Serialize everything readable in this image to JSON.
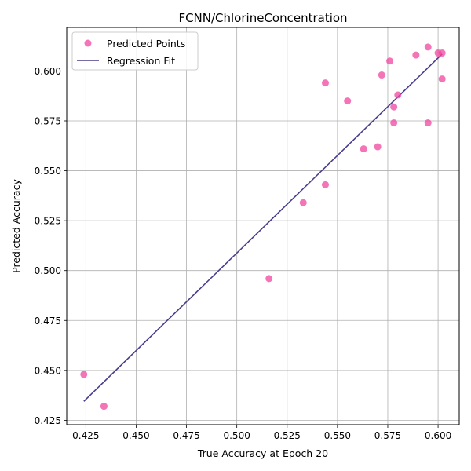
{
  "chart_data": {
    "type": "scatter",
    "title": "FCNN/ChlorineConcentration",
    "xlabel": "True Accuracy at Epoch 20",
    "ylabel": "Predicted Accuracy",
    "xlim": [
      0.4155,
      0.6105
    ],
    "ylim": [
      0.4228,
      0.6218
    ],
    "xticks": [
      "0.425",
      "0.450",
      "0.475",
      "0.500",
      "0.525",
      "0.550",
      "0.575",
      "0.600"
    ],
    "yticks": [
      "0.425",
      "0.450",
      "0.475",
      "0.500",
      "0.525",
      "0.550",
      "0.575",
      "0.600"
    ],
    "grid": true,
    "legend_position": "top-left",
    "series": [
      {
        "name": "Predicted Points",
        "kind": "scatter",
        "color": "#f0479f",
        "points": [
          {
            "x": 0.424,
            "y": 0.448
          },
          {
            "x": 0.434,
            "y": 0.432
          },
          {
            "x": 0.516,
            "y": 0.496
          },
          {
            "x": 0.533,
            "y": 0.534
          },
          {
            "x": 0.544,
            "y": 0.543
          },
          {
            "x": 0.544,
            "y": 0.594
          },
          {
            "x": 0.555,
            "y": 0.585
          },
          {
            "x": 0.563,
            "y": 0.561
          },
          {
            "x": 0.57,
            "y": 0.562
          },
          {
            "x": 0.572,
            "y": 0.598
          },
          {
            "x": 0.576,
            "y": 0.605
          },
          {
            "x": 0.578,
            "y": 0.574
          },
          {
            "x": 0.578,
            "y": 0.582
          },
          {
            "x": 0.58,
            "y": 0.588
          },
          {
            "x": 0.589,
            "y": 0.608
          },
          {
            "x": 0.595,
            "y": 0.612
          },
          {
            "x": 0.595,
            "y": 0.574
          },
          {
            "x": 0.6,
            "y": 0.609
          },
          {
            "x": 0.602,
            "y": 0.609
          },
          {
            "x": 0.602,
            "y": 0.596
          }
        ]
      },
      {
        "name": "Regression Fit",
        "kind": "line",
        "color": "#483d8b",
        "points": [
          {
            "x": 0.424,
            "y": 0.4345
          },
          {
            "x": 0.602,
            "y": 0.6085
          }
        ]
      }
    ]
  }
}
